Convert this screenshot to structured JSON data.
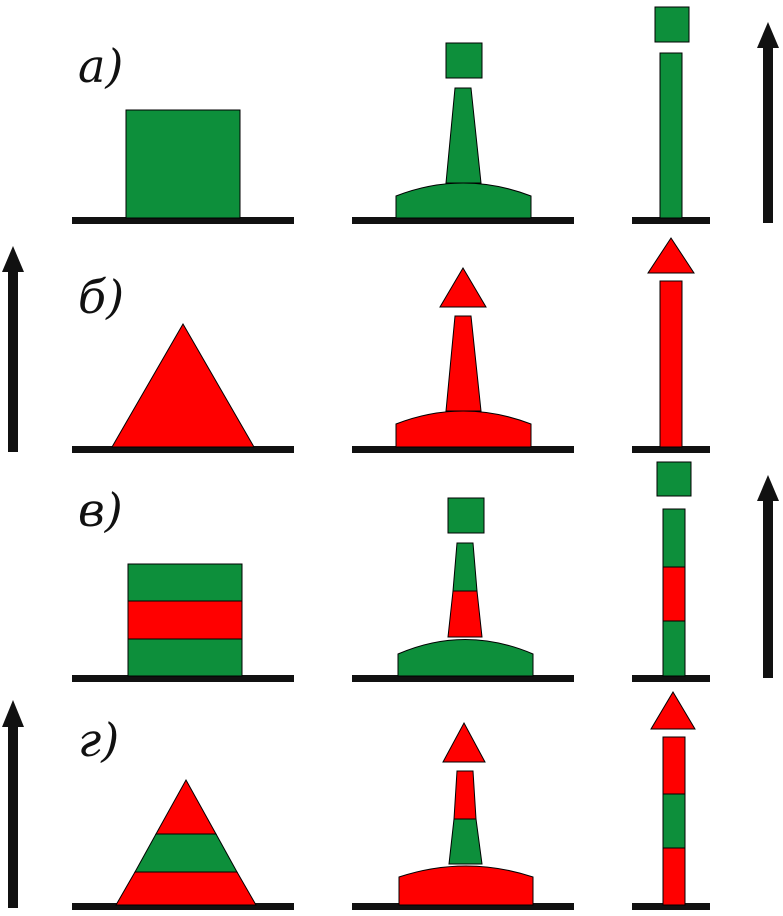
{
  "colors": {
    "green": "#0d8f3b",
    "red": "#ff0000",
    "ground": "#111111",
    "arrow": "#111111",
    "outline": "#000000"
  },
  "rows": [
    {
      "label": "а)",
      "arrow": "right"
    },
    {
      "label": "б)",
      "arrow": "left"
    },
    {
      "label": "в)",
      "arrow": "right"
    },
    {
      "label": "г)",
      "arrow": "left"
    }
  ]
}
